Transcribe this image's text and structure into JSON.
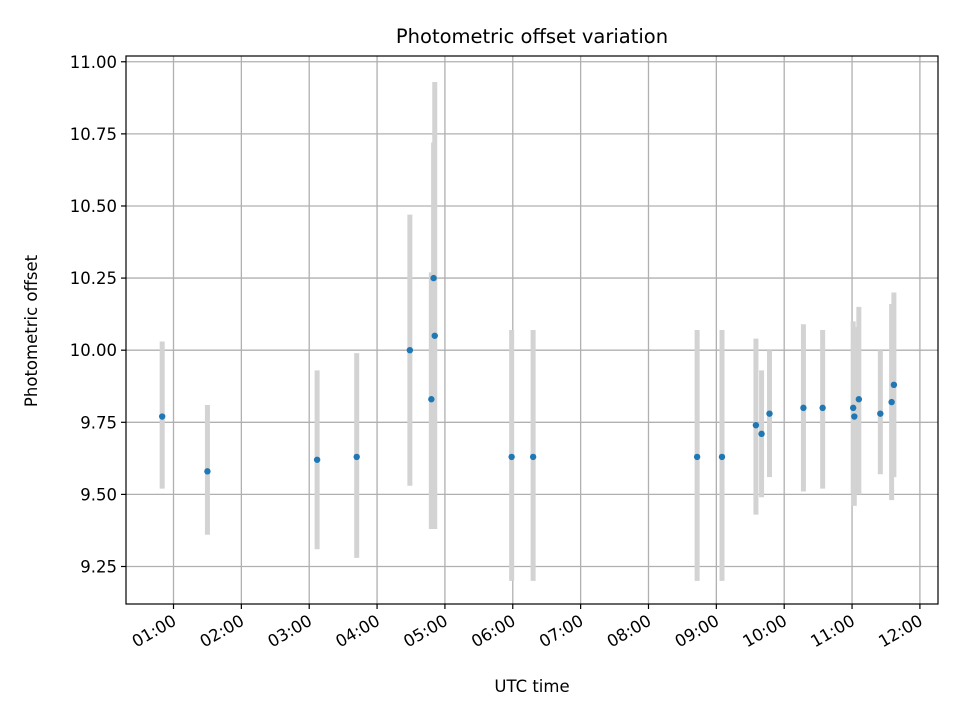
{
  "chart_data": {
    "type": "scatter",
    "title": "Photometric offset variation",
    "xlabel": "UTC time",
    "ylabel": "Photometric offset",
    "xlim": [
      "00:18",
      "12:16"
    ],
    "ylim": [
      9.12,
      11.02
    ],
    "grid": true,
    "x_ticks": [
      "01:00",
      "02:00",
      "03:00",
      "04:00",
      "05:00",
      "06:00",
      "07:00",
      "08:00",
      "09:00",
      "10:00",
      "11:00",
      "12:00"
    ],
    "y_ticks": [
      "9.25",
      "9.50",
      "9.75",
      "10.00",
      "10.25",
      "10.50",
      "10.75",
      "11.00"
    ],
    "point_color": "#1f77b4",
    "errorbar_color": "#d3d3d3",
    "points": [
      {
        "time": "00:50",
        "y": 9.77,
        "low": 9.52,
        "high": 10.03
      },
      {
        "time": "01:30",
        "y": 9.58,
        "low": 9.36,
        "high": 9.81
      },
      {
        "time": "03:07",
        "y": 9.62,
        "low": 9.31,
        "high": 9.93
      },
      {
        "time": "03:42",
        "y": 9.63,
        "low": 9.28,
        "high": 9.99
      },
      {
        "time": "04:29",
        "y": 10.0,
        "low": 9.53,
        "high": 10.47
      },
      {
        "time": "04:48",
        "y": 9.83,
        "low": 9.38,
        "high": 10.27
      },
      {
        "time": "04:50",
        "y": 10.25,
        "low": 9.8,
        "high": 10.72
      },
      {
        "time": "04:51",
        "y": 10.05,
        "low": 9.38,
        "high": 10.93
      },
      {
        "time": "05:59",
        "y": 9.63,
        "low": 9.2,
        "high": 10.07
      },
      {
        "time": "06:18",
        "y": 9.63,
        "low": 9.2,
        "high": 10.07
      },
      {
        "time": "08:43",
        "y": 9.63,
        "low": 9.2,
        "high": 10.07
      },
      {
        "time": "09:05",
        "y": 9.63,
        "low": 9.2,
        "high": 10.07
      },
      {
        "time": "09:35",
        "y": 9.74,
        "low": 9.43,
        "high": 10.04
      },
      {
        "time": "09:40",
        "y": 9.71,
        "low": 9.49,
        "high": 9.93
      },
      {
        "time": "09:47",
        "y": 9.78,
        "low": 9.56,
        "high": 10.0
      },
      {
        "time": "10:17",
        "y": 9.8,
        "low": 9.51,
        "high": 10.09
      },
      {
        "time": "10:34",
        "y": 9.8,
        "low": 9.52,
        "high": 10.07
      },
      {
        "time": "11:01",
        "y": 9.8,
        "low": 9.5,
        "high": 10.1
      },
      {
        "time": "11:02",
        "y": 9.77,
        "low": 9.46,
        "high": 10.08
      },
      {
        "time": "11:06",
        "y": 9.83,
        "low": 9.5,
        "high": 10.15
      },
      {
        "time": "11:25",
        "y": 9.78,
        "low": 9.57,
        "high": 10.0
      },
      {
        "time": "11:35",
        "y": 9.82,
        "low": 9.48,
        "high": 10.16
      },
      {
        "time": "11:37",
        "y": 9.88,
        "low": 9.56,
        "high": 10.2
      }
    ]
  }
}
